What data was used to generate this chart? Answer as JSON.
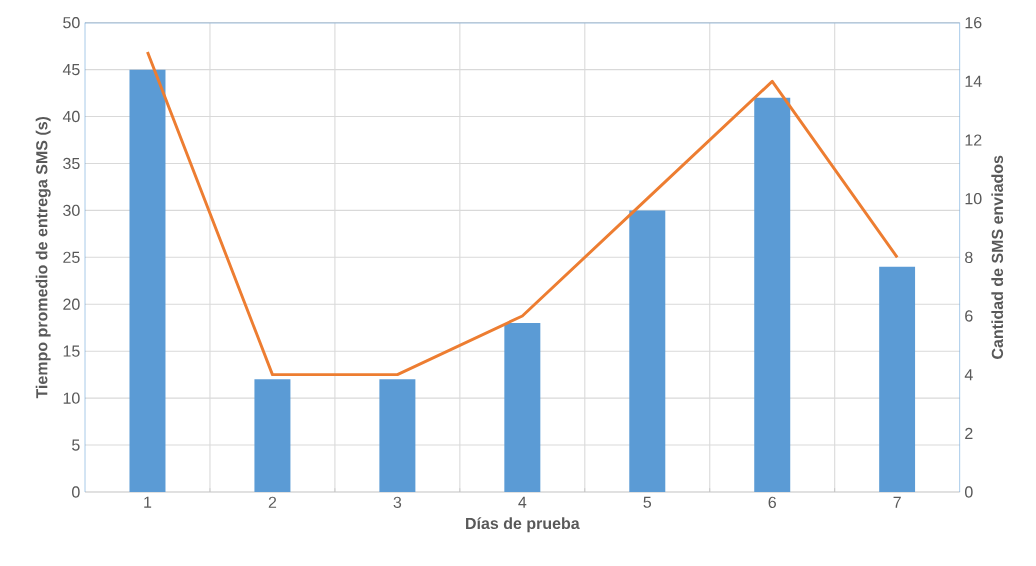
{
  "chart_data": {
    "type": "bar",
    "xlabel": "Días de prueba",
    "ylabel": "Tiempo promedio de entrega SMS (s)",
    "y2label": "Cantidad de SMS enviados",
    "categories": [
      "1",
      "2",
      "3",
      "4",
      "5",
      "6",
      "7"
    ],
    "series": [
      {
        "color": "#5b9bd5",
        "values": [
          45,
          12,
          12,
          18,
          30,
          42,
          24
        ]
      },
      {
        "type": "line",
        "axis": "y2",
        "color": "#ed7d31",
        "values": [
          15,
          4,
          4,
          6,
          10,
          14,
          8
        ]
      }
    ],
    "ylim": [
      0,
      50
    ],
    "yticks": [
      0,
      5,
      10,
      15,
      20,
      25,
      30,
      35,
      40,
      45,
      50
    ],
    "y2lim": [
      0,
      16
    ],
    "y2ticks": [
      0,
      2,
      4,
      6,
      8,
      10,
      12,
      14,
      16
    ],
    "grid": true
  }
}
